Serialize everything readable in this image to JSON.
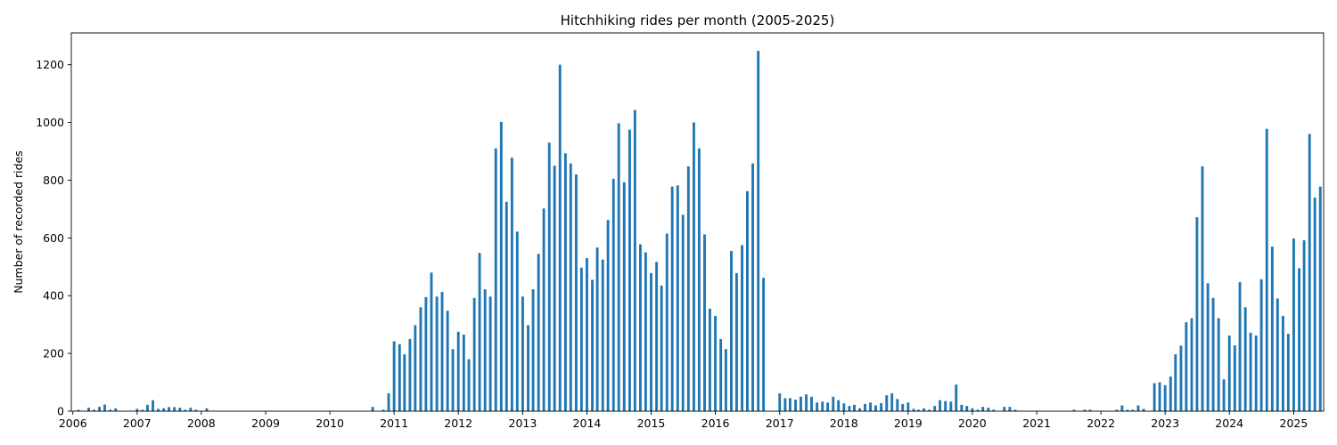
{
  "chart_data": {
    "type": "bar",
    "title": "Hitchhiking rides per month (2005-2025)",
    "xlabel": "",
    "ylabel": "Number of recorded rides",
    "ylim": [
      0,
      1310
    ],
    "xlim": [
      "2005-12-23",
      "2025-06-20"
    ],
    "grid": false,
    "bar_color": "#1f77b4",
    "yticks": [
      0,
      200,
      400,
      600,
      800,
      1000,
      1200
    ],
    "xticks": [
      "2006",
      "2007",
      "2008",
      "2009",
      "2010",
      "2011",
      "2012",
      "2013",
      "2014",
      "2015",
      "2016",
      "2017",
      "2018",
      "2019",
      "2020",
      "2021",
      "2022",
      "2023",
      "2024",
      "2025"
    ],
    "start_month": "2006-01",
    "values": [
      0,
      5,
      0,
      12,
      5,
      15,
      23,
      5,
      10,
      0,
      0,
      0,
      8,
      5,
      22,
      38,
      8,
      10,
      14,
      14,
      12,
      5,
      12,
      5,
      0,
      10,
      0,
      0,
      0,
      0,
      0,
      0,
      0,
      0,
      0,
      0,
      0,
      0,
      0,
      0,
      0,
      0,
      0,
      0,
      0,
      0,
      0,
      0,
      0,
      0,
      0,
      0,
      0,
      0,
      0,
      0,
      15,
      0,
      5,
      62,
      242,
      232,
      197,
      250,
      298,
      360,
      395,
      480,
      397,
      413,
      348,
      215,
      275,
      265,
      180,
      392,
      548,
      422,
      397,
      910,
      1002,
      725,
      878,
      622,
      397,
      298,
      422,
      545,
      702,
      930,
      850,
      1200,
      893,
      858,
      820,
      497,
      530,
      455,
      567,
      525,
      662,
      805,
      997,
      793,
      975,
      1043,
      578,
      550,
      478,
      517,
      435,
      615,
      778,
      782,
      680,
      848,
      1000,
      910,
      612,
      355,
      330,
      250,
      215,
      555,
      478,
      575,
      762,
      858,
      1248,
      462,
      0,
      0,
      62,
      45,
      45,
      40,
      50,
      58,
      50,
      30,
      33,
      30,
      50,
      38,
      27,
      18,
      22,
      10,
      25,
      30,
      20,
      28,
      55,
      62,
      42,
      25,
      30,
      8,
      5,
      10,
      5,
      18,
      38,
      35,
      33,
      92,
      22,
      18,
      10,
      5,
      15,
      12,
      5,
      0,
      15,
      15,
      5,
      0,
      0,
      0,
      0,
      0,
      0,
      0,
      0,
      0,
      0,
      5,
      0,
      5,
      5,
      0,
      0,
      0,
      0,
      5,
      20,
      5,
      5,
      20,
      8,
      0,
      97,
      100,
      90,
      120,
      197,
      227,
      308,
      322,
      672,
      848,
      443,
      392,
      322,
      110,
      262,
      228,
      447,
      360,
      272,
      262,
      457,
      978,
      570,
      390,
      330,
      268,
      598,
      495,
      592,
      960,
      740,
      778
    ]
  }
}
